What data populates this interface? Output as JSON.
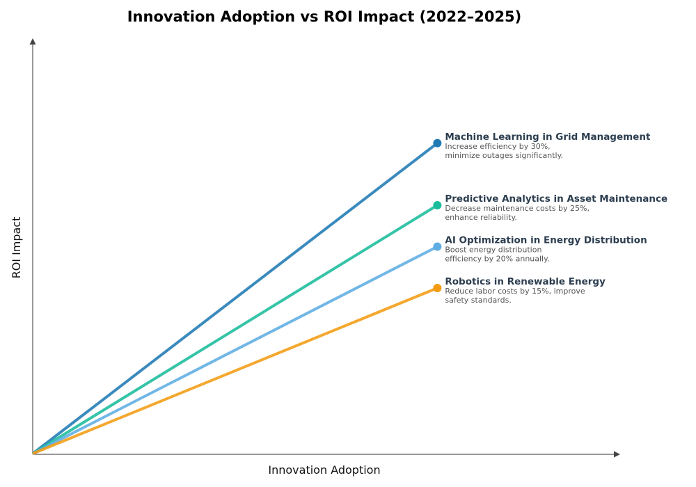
{
  "chart_data": {
    "type": "line",
    "title": "Innovation Adoption vs ROI Impact (2022–2025)",
    "xlabel": "Innovation Adoption",
    "ylabel": "ROI Impact",
    "xlim": [
      0,
      1.45
    ],
    "ylim": [
      0,
      1
    ],
    "grid": false,
    "series": [
      {
        "name": "Machine Learning in Grid Management",
        "description": [
          "Increase efficiency by 30%,",
          "minimize outages significantly."
        ],
        "color": "#1f7ab4",
        "x": [
          0,
          1
        ],
        "y": [
          0,
          0.75
        ]
      },
      {
        "name": "Predictive Analytics in Asset Maintenance",
        "description": [
          "Decrease maintenance costs by 25%,",
          "enhance reliability."
        ],
        "color": "#1abc9c",
        "x": [
          0,
          1
        ],
        "y": [
          0,
          0.6
        ]
      },
      {
        "name": "AI Optimization in Energy Distribution",
        "description": [
          "Boost energy distribution",
          "efficiency by 20% annually."
        ],
        "color": "#5dade2",
        "x": [
          0,
          1
        ],
        "y": [
          0,
          0.5
        ]
      },
      {
        "name": "Robotics in Renewable Energy",
        "description": [
          "Reduce labor costs by 15%, improve",
          "safety standards."
        ],
        "color": "#f39c12",
        "x": [
          0,
          1
        ],
        "y": [
          0,
          0.4
        ]
      }
    ]
  }
}
